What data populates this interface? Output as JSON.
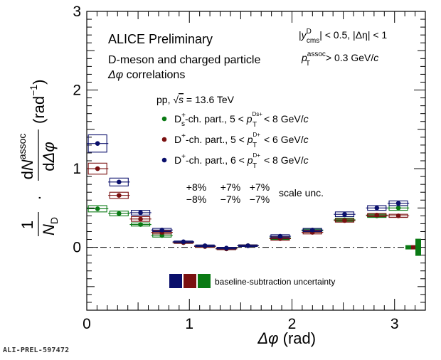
{
  "chart_data": {
    "type": "scatter",
    "xlabel_sym": "Δφ",
    "xlabel_unit": "(rad)",
    "ylabel": {
      "prefix_num": "1",
      "prefix_den_N": "N",
      "prefix_den_sub": "D",
      "dot": "·",
      "num_dN": "dN",
      "num_sup": "assoc",
      "den": "dΔφ",
      "unit": "(rad",
      "unit_sup": "−1",
      "unit_close": ")"
    },
    "xlim": [
      0,
      3.3
    ],
    "ylim": [
      -0.8,
      3.0
    ],
    "xticks": [
      0,
      1,
      2,
      3
    ],
    "yticks": [
      0,
      1,
      2,
      3
    ],
    "x": [
      0.105,
      0.314,
      0.524,
      0.733,
      0.88,
      1.047,
      1.152,
      1.257,
      1.361,
      1.466,
      1.571,
      1.676,
      1.781,
      1.885,
      1.99,
      2.094,
      2.199,
      2.304,
      2.409,
      2.513,
      2.618,
      2.723,
      2.827,
      2.932,
      3.037
    ],
    "series": [
      {
        "name": "Ds",
        "color": "#0a7a14",
        "bins": [
          0.105,
          0.314,
          0.524,
          0.733,
          0.942,
          1.152,
          1.361,
          1.571,
          1.885,
          2.199,
          2.513,
          2.827,
          3.037
        ],
        "values": [
          0.49,
          0.43,
          0.29,
          0.15,
          0.06,
          0.01,
          -0.02,
          0.02,
          0.12,
          0.21,
          0.35,
          0.4,
          0.5
        ],
        "syst": [
          0.04,
          0.03,
          0.02,
          0.02,
          0.01,
          0.01,
          0.01,
          0.01,
          0.02,
          0.02,
          0.02,
          0.02,
          0.03
        ]
      },
      {
        "name": "Dplus_low",
        "color": "#7a1010",
        "bins": [
          0.105,
          0.314,
          0.524,
          0.733,
          0.942,
          1.152,
          1.361,
          1.571,
          1.885,
          2.199,
          2.513,
          2.827,
          3.037
        ],
        "values": [
          1.0,
          0.66,
          0.36,
          0.19,
          0.06,
          0.01,
          -0.02,
          0.02,
          0.11,
          0.19,
          0.34,
          0.41,
          0.4
        ],
        "syst": [
          0.07,
          0.04,
          0.03,
          0.02,
          0.01,
          0.01,
          0.01,
          0.01,
          0.02,
          0.02,
          0.02,
          0.02,
          0.02
        ]
      },
      {
        "name": "Dplus_high",
        "color": "#0a0f6b",
        "bins": [
          0.105,
          0.314,
          0.524,
          0.733,
          0.942,
          1.152,
          1.361,
          1.571,
          1.885,
          2.199,
          2.513,
          2.827,
          3.037
        ],
        "values": [
          1.32,
          0.83,
          0.44,
          0.22,
          0.07,
          0.02,
          -0.01,
          0.02,
          0.14,
          0.22,
          0.42,
          0.5,
          0.56
        ],
        "syst": [
          0.11,
          0.05,
          0.03,
          0.02,
          0.01,
          0.01,
          0.01,
          0.01,
          0.02,
          0.02,
          0.03,
          0.03,
          0.03
        ]
      }
    ],
    "text": {
      "title": "ALICE Preliminary",
      "line1": "D-meson and charged particle",
      "line2": "Δφ correlations",
      "cut1": "|y",
      "cut1_sup": "D",
      "cut1_sub": "cms",
      "cut1_rest": "| < 0.5, |Δη| < 1",
      "cut2_p": "p",
      "cut2_sup": "assoc",
      "cut2_sub": "T",
      "cut2_rest": " > 0.3 GeV/c",
      "system": "pp,",
      "energy": "√s = 13.6 TeV",
      "legend": [
        {
          "pre": "D",
          "pre_sup": "+",
          "pre_sub": "s",
          "mid": "-ch. part., 5 < ",
          "p_sup": "D",
          "p_sup2": "s",
          "p_sup3": "+",
          "post": " < 8 GeV/c"
        },
        {
          "pre": "D",
          "pre_sup": "+",
          "pre_sub": "",
          "mid": "-ch. part., 5 < ",
          "p_sup": "D",
          "p_sup2": "",
          "p_sup3": "+",
          "post": " < 6 GeV/c"
        },
        {
          "pre": "D",
          "pre_sup": "+",
          "pre_sub": "",
          "mid": "-ch. part., 6 < ",
          "p_sup": "D",
          "p_sup2": "",
          "p_sup3": "+",
          "post": " < 8 GeV/c"
        }
      ],
      "scale_plus": [
        "+8%",
        "+7%",
        "+7%"
      ],
      "scale_minus": [
        "−8%",
        "−7%",
        "−7%"
      ],
      "scale_label": "scale unc.",
      "baseline_label": "baseline-subtraction uncertainty",
      "prel_id": "ALI-PREL-597472"
    }
  }
}
